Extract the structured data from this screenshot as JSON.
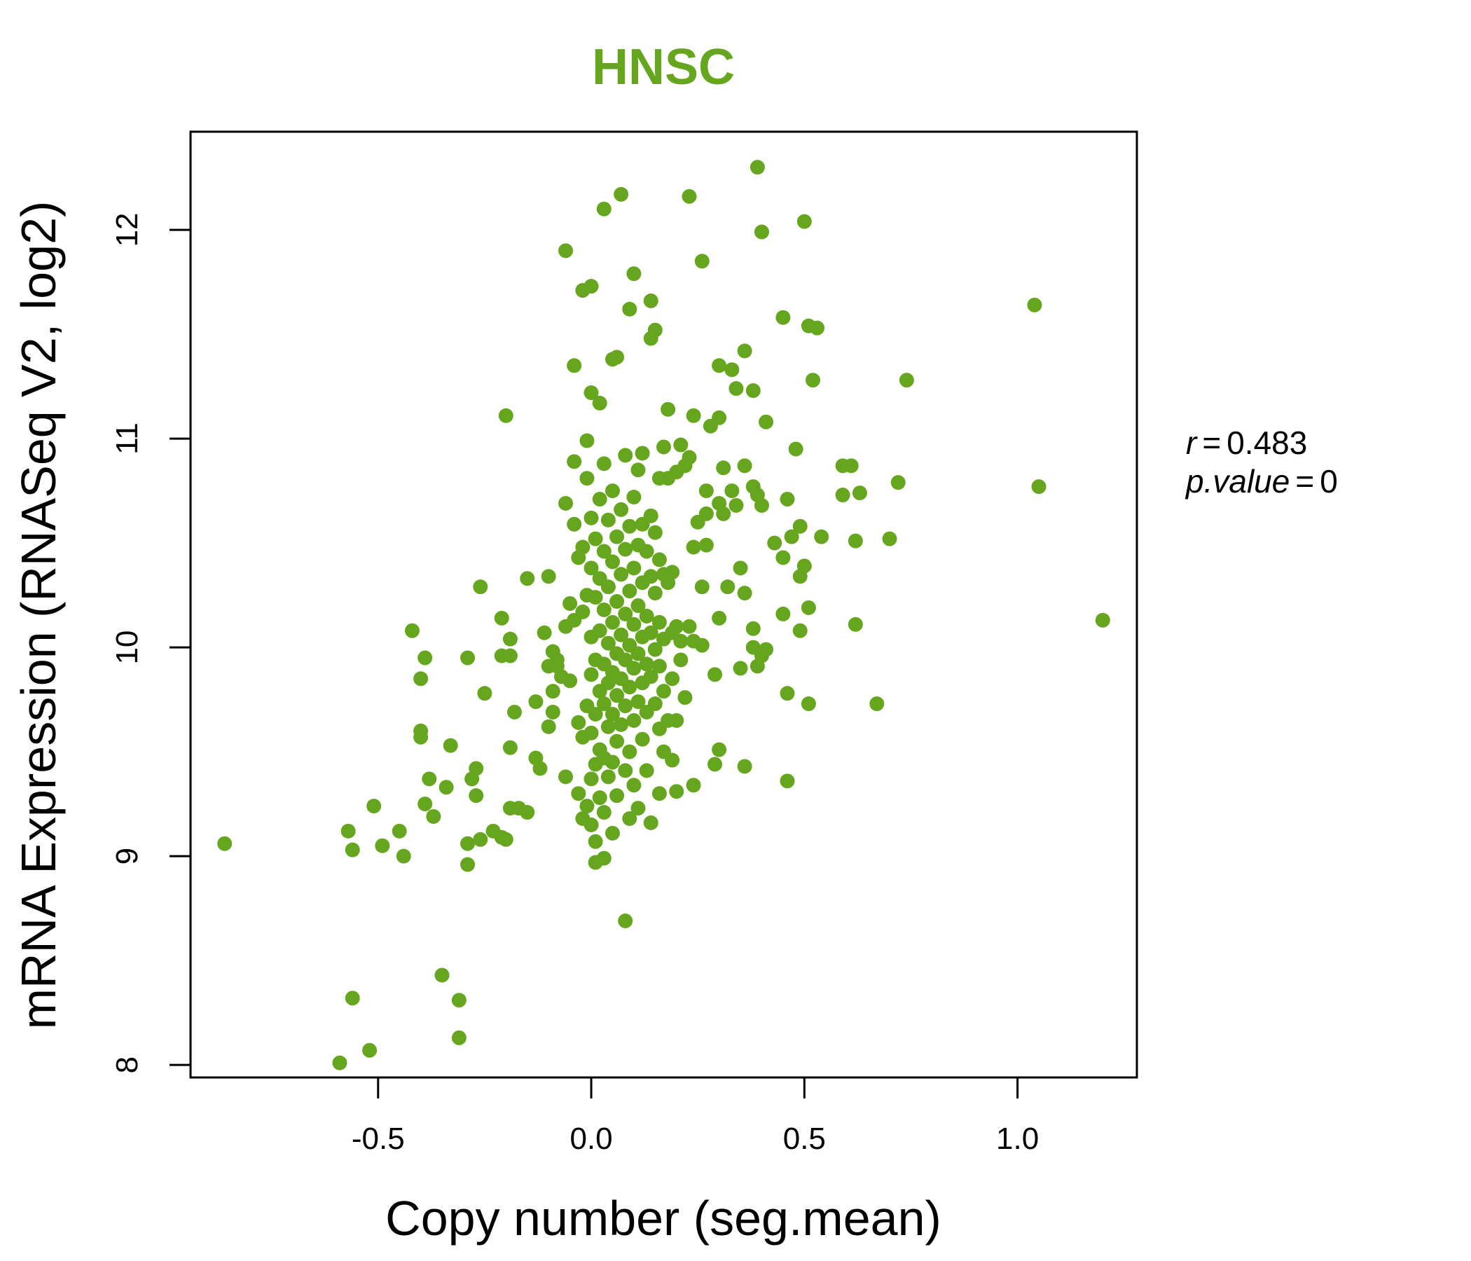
{
  "chart_data": {
    "type": "scatter",
    "title": "HNSC",
    "xlabel": "Copy number (seg.mean)",
    "ylabel": "mRNA Expression (RNASeq V2, log2)",
    "xlim": [
      -0.94,
      1.28
    ],
    "ylim": [
      7.94,
      12.47
    ],
    "x_ticks": [
      -0.5,
      0.0,
      0.5,
      1.0
    ],
    "x_tick_labels": [
      "-0.5",
      "0.0",
      "0.5",
      "1.0"
    ],
    "y_ticks": [
      8,
      9,
      10,
      11,
      12
    ],
    "y_tick_labels": [
      "8",
      "9",
      "10",
      "11",
      "12"
    ],
    "point_color": "#66a61e",
    "annotation": {
      "r_label": "r",
      "r_value": "0.483",
      "p_label": "p.value",
      "p_value": "0"
    },
    "points": [
      [
        -0.86,
        9.06
      ],
      [
        -0.59,
        8.01
      ],
      [
        -0.57,
        9.12
      ],
      [
        -0.56,
        9.03
      ],
      [
        -0.56,
        8.32
      ],
      [
        -0.52,
        8.07
      ],
      [
        -0.51,
        9.24
      ],
      [
        -0.49,
        9.05
      ],
      [
        -0.45,
        9.12
      ],
      [
        -0.44,
        9.0
      ],
      [
        -0.42,
        10.08
      ],
      [
        -0.4,
        9.85
      ],
      [
        -0.4,
        9.57
      ],
      [
        -0.4,
        9.6
      ],
      [
        -0.39,
        9.25
      ],
      [
        -0.39,
        9.95
      ],
      [
        -0.38,
        9.37
      ],
      [
        -0.37,
        9.19
      ],
      [
        -0.35,
        8.43
      ],
      [
        -0.34,
        9.33
      ],
      [
        -0.33,
        9.53
      ],
      [
        -0.31,
        8.13
      ],
      [
        -0.31,
        8.31
      ],
      [
        -0.29,
        9.95
      ],
      [
        -0.29,
        9.06
      ],
      [
        -0.29,
        8.96
      ],
      [
        -0.28,
        9.37
      ],
      [
        -0.27,
        9.42
      ],
      [
        -0.27,
        9.29
      ],
      [
        -0.26,
        10.29
      ],
      [
        -0.26,
        9.08
      ],
      [
        -0.25,
        9.78
      ],
      [
        -0.23,
        9.12
      ],
      [
        -0.21,
        9.09
      ],
      [
        -0.21,
        10.14
      ],
      [
        -0.21,
        9.96
      ],
      [
        -0.2,
        11.11
      ],
      [
        -0.2,
        9.08
      ],
      [
        -0.19,
        9.96
      ],
      [
        -0.19,
        10.04
      ],
      [
        -0.19,
        9.52
      ],
      [
        -0.19,
        9.23
      ],
      [
        -0.18,
        9.69
      ],
      [
        -0.17,
        9.23
      ],
      [
        -0.15,
        9.21
      ],
      [
        -0.15,
        10.33
      ],
      [
        -0.13,
        9.74
      ],
      [
        -0.13,
        9.47
      ],
      [
        -0.12,
        9.42
      ],
      [
        -0.11,
        10.07
      ],
      [
        -0.1,
        10.34
      ],
      [
        -0.1,
        9.91
      ],
      [
        -0.1,
        9.62
      ],
      [
        -0.09,
        9.79
      ],
      [
        -0.09,
        9.69
      ],
      [
        -0.09,
        9.98
      ],
      [
        -0.08,
        9.94
      ],
      [
        -0.08,
        9.91
      ],
      [
        -0.07,
        9.86
      ],
      [
        -0.06,
        11.9
      ],
      [
        -0.06,
        10.69
      ],
      [
        -0.06,
        10.1
      ],
      [
        -0.06,
        9.38
      ],
      [
        -0.05,
        10.21
      ],
      [
        -0.05,
        9.84
      ],
      [
        -0.04,
        10.59
      ],
      [
        -0.04,
        10.13
      ],
      [
        -0.04,
        11.35
      ],
      [
        -0.04,
        10.89
      ],
      [
        -0.03,
        10.43
      ],
      [
        -0.03,
        9.64
      ],
      [
        -0.03,
        9.3
      ],
      [
        -0.02,
        11.71
      ],
      [
        -0.02,
        10.17
      ],
      [
        -0.02,
        9.57
      ],
      [
        -0.02,
        9.18
      ],
      [
        -0.02,
        10.48
      ],
      [
        -0.01,
        10.99
      ],
      [
        -0.01,
        10.81
      ],
      [
        -0.01,
        10.25
      ],
      [
        -0.01,
        9.72
      ],
      [
        -0.01,
        9.24
      ],
      [
        0.0,
        11.73
      ],
      [
        0.0,
        11.22
      ],
      [
        0.0,
        10.62
      ],
      [
        0.0,
        10.38
      ],
      [
        0.0,
        10.05
      ],
      [
        0.0,
        9.87
      ],
      [
        0.0,
        9.59
      ],
      [
        0.0,
        9.37
      ],
      [
        0.0,
        9.15
      ],
      [
        0.01,
        10.52
      ],
      [
        0.01,
        10.24
      ],
      [
        0.01,
        9.94
      ],
      [
        0.01,
        9.68
      ],
      [
        0.01,
        9.44
      ],
      [
        0.01,
        9.07
      ],
      [
        0.01,
        8.97
      ],
      [
        0.02,
        11.17
      ],
      [
        0.02,
        10.71
      ],
      [
        0.02,
        10.33
      ],
      [
        0.02,
        10.08
      ],
      [
        0.02,
        9.79
      ],
      [
        0.02,
        9.51
      ],
      [
        0.02,
        9.28
      ],
      [
        0.03,
        12.1
      ],
      [
        0.03,
        10.88
      ],
      [
        0.03,
        10.46
      ],
      [
        0.03,
        10.18
      ],
      [
        0.03,
        9.92
      ],
      [
        0.03,
        9.73
      ],
      [
        0.03,
        9.47
      ],
      [
        0.03,
        9.21
      ],
      [
        0.03,
        8.99
      ],
      [
        0.04,
        10.61
      ],
      [
        0.04,
        10.29
      ],
      [
        0.04,
        10.02
      ],
      [
        0.04,
        9.83
      ],
      [
        0.04,
        9.62
      ],
      [
        0.04,
        9.38
      ],
      [
        0.05,
        11.38
      ],
      [
        0.05,
        10.75
      ],
      [
        0.05,
        10.41
      ],
      [
        0.05,
        10.12
      ],
      [
        0.05,
        9.88
      ],
      [
        0.05,
        9.68
      ],
      [
        0.05,
        9.45
      ],
      [
        0.05,
        9.11
      ],
      [
        0.06,
        11.39
      ],
      [
        0.06,
        10.53
      ],
      [
        0.06,
        10.22
      ],
      [
        0.06,
        9.97
      ],
      [
        0.06,
        9.77
      ],
      [
        0.06,
        9.55
      ],
      [
        0.06,
        9.29
      ],
      [
        0.07,
        12.17
      ],
      [
        0.07,
        10.66
      ],
      [
        0.07,
        10.35
      ],
      [
        0.07,
        10.06
      ],
      [
        0.07,
        9.85
      ],
      [
        0.07,
        9.63
      ],
      [
        0.08,
        10.92
      ],
      [
        0.08,
        10.47
      ],
      [
        0.08,
        10.16
      ],
      [
        0.08,
        9.94
      ],
      [
        0.08,
        9.72
      ],
      [
        0.08,
        9.41
      ],
      [
        0.08,
        8.69
      ],
      [
        0.09,
        11.62
      ],
      [
        0.09,
        10.58
      ],
      [
        0.09,
        10.27
      ],
      [
        0.09,
        10.01
      ],
      [
        0.09,
        9.81
      ],
      [
        0.09,
        9.5
      ],
      [
        0.09,
        9.18
      ],
      [
        0.1,
        11.79
      ],
      [
        0.1,
        10.72
      ],
      [
        0.1,
        10.38
      ],
      [
        0.1,
        10.11
      ],
      [
        0.1,
        9.9
      ],
      [
        0.1,
        9.65
      ],
      [
        0.1,
        9.34
      ],
      [
        0.11,
        10.85
      ],
      [
        0.11,
        10.49
      ],
      [
        0.11,
        10.2
      ],
      [
        0.11,
        9.97
      ],
      [
        0.11,
        9.74
      ],
      [
        0.11,
        9.23
      ],
      [
        0.12,
        10.93
      ],
      [
        0.12,
        10.59
      ],
      [
        0.12,
        10.31
      ],
      [
        0.12,
        10.05
      ],
      [
        0.12,
        9.83
      ],
      [
        0.12,
        9.56
      ],
      [
        0.13,
        10.46
      ],
      [
        0.13,
        10.15
      ],
      [
        0.13,
        9.92
      ],
      [
        0.13,
        9.69
      ],
      [
        0.13,
        9.41
      ],
      [
        0.14,
        11.66
      ],
      [
        0.14,
        11.48
      ],
      [
        0.14,
        10.63
      ],
      [
        0.14,
        10.34
      ],
      [
        0.14,
        10.07
      ],
      [
        0.14,
        9.86
      ],
      [
        0.14,
        9.16
      ],
      [
        0.15,
        11.52
      ],
      [
        0.15,
        10.55
      ],
      [
        0.15,
        10.26
      ],
      [
        0.15,
        9.99
      ],
      [
        0.15,
        9.73
      ],
      [
        0.16,
        10.81
      ],
      [
        0.16,
        10.42
      ],
      [
        0.16,
        10.12
      ],
      [
        0.16,
        9.91
      ],
      [
        0.16,
        9.61
      ],
      [
        0.16,
        9.3
      ],
      [
        0.17,
        10.96
      ],
      [
        0.17,
        10.35
      ],
      [
        0.17,
        10.04
      ],
      [
        0.17,
        9.79
      ],
      [
        0.17,
        9.5
      ],
      [
        0.18,
        11.14
      ],
      [
        0.18,
        10.81
      ],
      [
        0.18,
        10.31
      ],
      [
        0.18,
        9.65
      ],
      [
        0.19,
        10.36
      ],
      [
        0.19,
        10.07
      ],
      [
        0.19,
        9.85
      ],
      [
        0.19,
        9.46
      ],
      [
        0.2,
        10.84
      ],
      [
        0.2,
        10.1
      ],
      [
        0.2,
        9.65
      ],
      [
        0.2,
        9.31
      ],
      [
        0.21,
        10.97
      ],
      [
        0.21,
        10.03
      ],
      [
        0.21,
        9.94
      ],
      [
        0.22,
        10.87
      ],
      [
        0.22,
        9.76
      ],
      [
        0.23,
        12.16
      ],
      [
        0.23,
        10.91
      ],
      [
        0.23,
        10.1
      ],
      [
        0.24,
        11.11
      ],
      [
        0.24,
        10.48
      ],
      [
        0.24,
        10.03
      ],
      [
        0.24,
        9.34
      ],
      [
        0.25,
        10.6
      ],
      [
        0.26,
        11.85
      ],
      [
        0.26,
        10.29
      ],
      [
        0.26,
        10.01
      ],
      [
        0.27,
        10.75
      ],
      [
        0.27,
        10.49
      ],
      [
        0.27,
        10.64
      ],
      [
        0.28,
        11.06
      ],
      [
        0.29,
        9.87
      ],
      [
        0.29,
        9.44
      ],
      [
        0.3,
        11.35
      ],
      [
        0.3,
        11.1
      ],
      [
        0.3,
        10.69
      ],
      [
        0.3,
        10.14
      ],
      [
        0.3,
        9.51
      ],
      [
        0.31,
        10.86
      ],
      [
        0.31,
        10.64
      ],
      [
        0.32,
        10.29
      ],
      [
        0.33,
        11.33
      ],
      [
        0.33,
        10.75
      ],
      [
        0.34,
        11.24
      ],
      [
        0.34,
        10.68
      ],
      [
        0.35,
        10.38
      ],
      [
        0.35,
        9.9
      ],
      [
        0.36,
        11.42
      ],
      [
        0.36,
        10.87
      ],
      [
        0.36,
        10.26
      ],
      [
        0.36,
        9.43
      ],
      [
        0.38,
        11.23
      ],
      [
        0.38,
        10.77
      ],
      [
        0.38,
        10.09
      ],
      [
        0.38,
        10.0
      ],
      [
        0.39,
        12.3
      ],
      [
        0.39,
        10.73
      ],
      [
        0.39,
        9.91
      ],
      [
        0.4,
        11.99
      ],
      [
        0.4,
        10.68
      ],
      [
        0.4,
        9.96
      ],
      [
        0.41,
        11.08
      ],
      [
        0.41,
        9.99
      ],
      [
        0.43,
        10.5
      ],
      [
        0.45,
        10.43
      ],
      [
        0.45,
        11.58
      ],
      [
        0.45,
        10.16
      ],
      [
        0.46,
        10.71
      ],
      [
        0.46,
        9.78
      ],
      [
        0.46,
        9.36
      ],
      [
        0.47,
        10.53
      ],
      [
        0.48,
        10.95
      ],
      [
        0.49,
        10.58
      ],
      [
        0.49,
        10.34
      ],
      [
        0.49,
        10.08
      ],
      [
        0.5,
        12.04
      ],
      [
        0.5,
        10.39
      ],
      [
        0.51,
        11.54
      ],
      [
        0.51,
        10.19
      ],
      [
        0.51,
        9.73
      ],
      [
        0.52,
        11.28
      ],
      [
        0.53,
        11.53
      ],
      [
        0.54,
        10.53
      ],
      [
        0.59,
        10.87
      ],
      [
        0.59,
        10.73
      ],
      [
        0.61,
        10.87
      ],
      [
        0.62,
        10.51
      ],
      [
        0.62,
        10.11
      ],
      [
        0.63,
        10.74
      ],
      [
        0.67,
        9.73
      ],
      [
        0.7,
        10.52
      ],
      [
        0.72,
        10.79
      ],
      [
        0.74,
        11.28
      ],
      [
        1.04,
        11.64
      ],
      [
        1.05,
        10.77
      ],
      [
        1.2,
        10.13
      ]
    ]
  }
}
